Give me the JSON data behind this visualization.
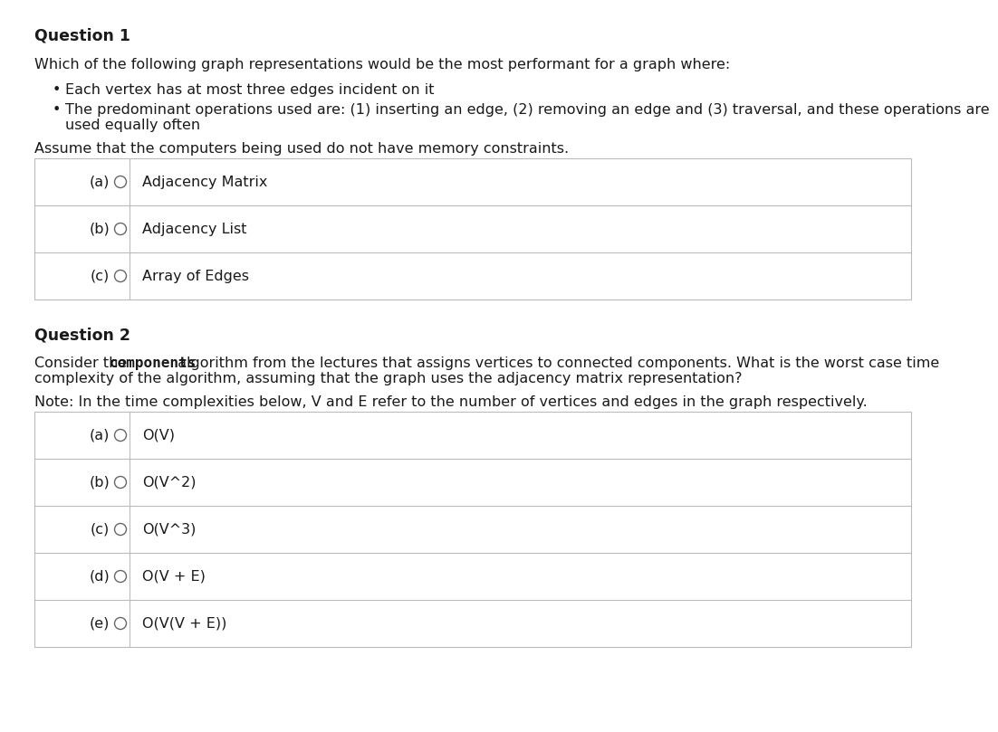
{
  "bg_color": "#ffffff",
  "text_color": "#1a1a1a",
  "border_color": "#bbbbbb",
  "q1_title": "Question 1",
  "q1_intro": "Which of the following graph representations would be the most performant for a graph where:",
  "q1_bullet1": "Each vertex has at most three edges incident on it",
  "q1_bullet2a": "The predominant operations used are: (1) inserting an edge, (2) removing an edge and (3) traversal, and these operations are",
  "q1_bullet2b": "used equally often",
  "q1_note": "Assume that the computers being used do not have memory constraints.",
  "q1_options": [
    [
      "(a)",
      "Adjacency Matrix"
    ],
    [
      "(b)",
      "Adjacency List"
    ],
    [
      "(c)",
      "Array of Edges"
    ]
  ],
  "q2_title": "Question 2",
  "q2_intro_pre": "Consider the ",
  "q2_intro_bold": "components",
  "q2_intro_post1": " algorithm from the lectures that assigns vertices to connected components. What is the worst case time",
  "q2_intro_post2": "complexity of the algorithm, assuming that the graph uses the adjacency matrix representation?",
  "q2_note": "Note: In the time complexities below, V and E refer to the number of vertices and edges in the graph respectively.",
  "q2_options": [
    [
      "(a)",
      "O(V)"
    ],
    [
      "(b)",
      "O(V^2)"
    ],
    [
      "(c)",
      "O(V^3)"
    ],
    [
      "(d)",
      "O(V + E)"
    ],
    [
      "(e)",
      "O(V(V + E))"
    ]
  ],
  "font_size": 11.5,
  "font_size_title": 12.5
}
